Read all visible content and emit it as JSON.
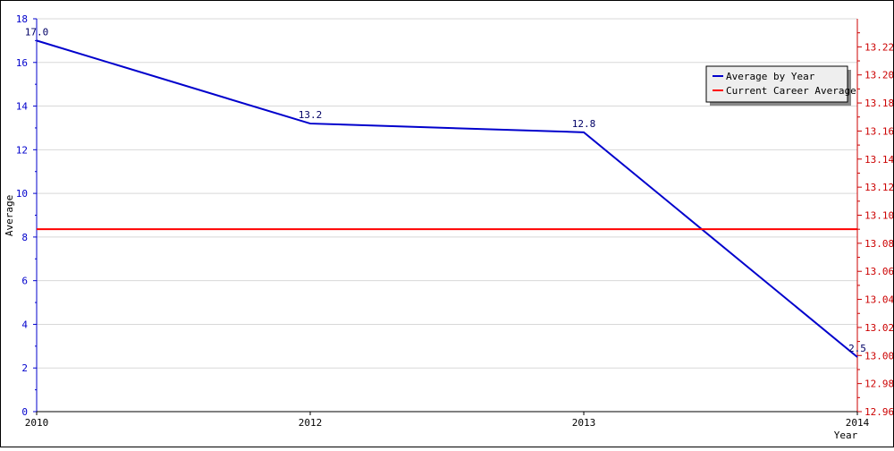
{
  "chart_data": {
    "type": "line",
    "x": [
      "2010",
      "2012",
      "2013",
      "2014"
    ],
    "xlabel": "Year",
    "ylabel": "Average",
    "left_axis": {
      "ylim": [
        0,
        18
      ],
      "ticks": [
        0,
        2,
        4,
        6,
        8,
        10,
        12,
        14,
        16,
        18
      ],
      "color": "#0000cc"
    },
    "right_axis": {
      "ylim": [
        12.96,
        13.24
      ],
      "ticks": [
        "12.96",
        "12.98",
        "13.00",
        "13.02",
        "13.04",
        "13.06",
        "13.08",
        "13.10",
        "13.12",
        "13.14",
        "13.16",
        "13.18",
        "13.20",
        "13.22"
      ],
      "color": "#cc0000"
    },
    "grid": true,
    "legend_position": "top-right",
    "series": [
      {
        "name": "Average by Year",
        "axis": "left",
        "color": "#0000cc",
        "values": [
          17.0,
          13.2,
          12.8,
          2.5
        ],
        "labels": [
          "17.0",
          "13.2",
          "12.8",
          "2.5"
        ]
      },
      {
        "name": "Current Career Average",
        "axis": "right",
        "color": "#ff0000",
        "values": [
          13.09,
          13.09,
          13.09,
          13.09
        ]
      }
    ]
  }
}
